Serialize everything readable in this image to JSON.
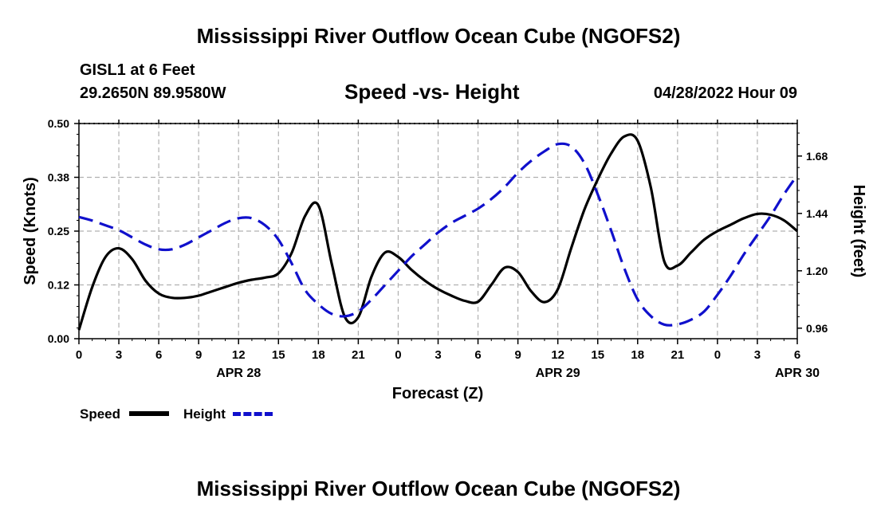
{
  "header": {
    "title": "Mississippi River Outflow Ocean Cube (NGOFS2)",
    "station": "GISL1 at 6 Feet",
    "coords": "29.2650N  89.9580W",
    "subtitle": "Speed -vs- Height",
    "datetime": "04/28/2022 Hour 09"
  },
  "footer": {
    "title": "Mississippi River Outflow Ocean Cube (NGOFS2)"
  },
  "legend": {
    "speed_label": "Speed",
    "height_label": "Height"
  },
  "colors": {
    "speed": "#000000",
    "height": "#1010cc",
    "grid": "#b0b0b0"
  },
  "chart_data": {
    "type": "line",
    "title": "Speed -vs- Height",
    "xlabel": "Forecast (Z)",
    "ylabel_left": "Speed (Knots)",
    "ylabel_right": "Height (feet)",
    "x_ticks": [
      "0",
      "3",
      "6",
      "9",
      "12",
      "15",
      "18",
      "21",
      "0",
      "3",
      "6",
      "9",
      "12",
      "15",
      "18",
      "21",
      "0",
      "3",
      "6"
    ],
    "date_labels": [
      {
        "label": "APR 28",
        "hour": 12
      },
      {
        "label": "APR 29",
        "hour": 36
      },
      {
        "label": "APR 30",
        "hour": 54
      }
    ],
    "xlim": [
      0,
      54
    ],
    "ylim_left": [
      0,
      0.5
    ],
    "ylim_right": [
      0.916,
      1.816
    ],
    "left_ticks": [
      {
        "value": 0.0,
        "label": "0.00"
      },
      {
        "value": 0.125,
        "label": "0.12"
      },
      {
        "value": 0.25,
        "label": "0.25"
      },
      {
        "value": 0.375,
        "label": "0.38"
      },
      {
        "value": 0.5,
        "label": "0.50"
      }
    ],
    "right_ticks": [
      {
        "value": 0.96,
        "label": "0.96"
      },
      {
        "value": 1.2,
        "label": "1.20"
      },
      {
        "value": 1.44,
        "label": "1.44"
      },
      {
        "value": 1.68,
        "label": "1.68"
      }
    ],
    "series": [
      {
        "name": "Speed",
        "axis": "left",
        "style": "solid",
        "x": [
          0,
          1,
          2,
          3,
          4,
          5,
          6,
          7,
          8,
          9,
          10,
          11,
          12,
          13,
          14,
          15,
          16,
          17,
          18,
          19,
          20,
          21,
          22,
          23,
          24,
          25,
          26,
          27,
          28,
          29,
          30,
          31,
          32,
          33,
          34,
          35,
          36,
          37,
          38,
          39,
          40,
          41,
          42,
          43,
          44,
          45,
          46,
          47,
          48,
          49,
          50,
          51,
          52,
          53,
          54
        ],
        "values": [
          0.02,
          0.12,
          0.19,
          0.21,
          0.185,
          0.135,
          0.105,
          0.095,
          0.095,
          0.1,
          0.11,
          0.12,
          0.13,
          0.137,
          0.142,
          0.152,
          0.2,
          0.285,
          0.31,
          0.175,
          0.05,
          0.05,
          0.145,
          0.2,
          0.19,
          0.16,
          0.135,
          0.115,
          0.1,
          0.088,
          0.086,
          0.125,
          0.165,
          0.155,
          0.11,
          0.085,
          0.115,
          0.21,
          0.3,
          0.37,
          0.43,
          0.47,
          0.46,
          0.35,
          0.18,
          0.17,
          0.2,
          0.23,
          0.25,
          0.265,
          0.28,
          0.29,
          0.288,
          0.275,
          0.25
        ]
      },
      {
        "name": "Height",
        "axis": "right",
        "style": "dashed",
        "x": [
          0,
          1,
          2,
          3,
          4,
          5,
          6,
          7,
          8,
          9,
          10,
          11,
          12,
          13,
          14,
          15,
          16,
          17,
          18,
          19,
          20,
          21,
          22,
          23,
          24,
          25,
          26,
          27,
          28,
          29,
          30,
          31,
          32,
          33,
          34,
          35,
          36,
          37,
          38,
          39,
          40,
          41,
          42,
          43,
          44,
          45,
          46,
          47,
          48,
          49,
          50,
          51,
          52,
          53,
          54
        ],
        "values": [
          1.425,
          1.41,
          1.39,
          1.37,
          1.34,
          1.31,
          1.29,
          1.29,
          1.31,
          1.34,
          1.37,
          1.4,
          1.42,
          1.42,
          1.39,
          1.33,
          1.23,
          1.12,
          1.06,
          1.02,
          1.01,
          1.03,
          1.08,
          1.14,
          1.2,
          1.26,
          1.31,
          1.36,
          1.4,
          1.43,
          1.46,
          1.5,
          1.55,
          1.61,
          1.66,
          1.7,
          1.73,
          1.72,
          1.65,
          1.52,
          1.37,
          1.21,
          1.08,
          1.01,
          0.975,
          0.976,
          0.995,
          1.03,
          1.1,
          1.18,
          1.27,
          1.35,
          1.43,
          1.52,
          1.6
        ]
      }
    ]
  }
}
